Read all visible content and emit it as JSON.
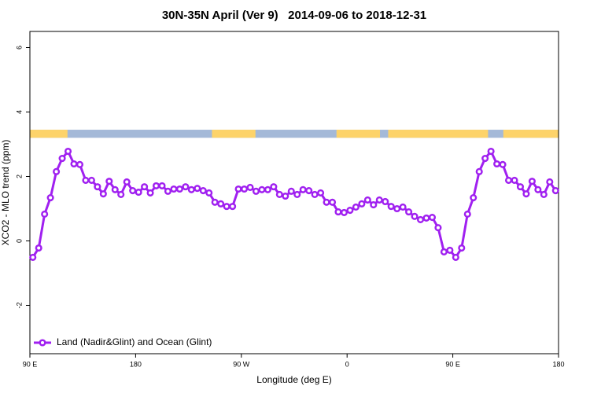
{
  "chart_data": {
    "type": "line",
    "title": "30N-35N April (Ver 9)   2014-09-06 to 2018-12-31",
    "xlabel": "Longitude (deg E)",
    "ylabel": "XCO2 - MLO trend (ppm)",
    "xlim": [
      90,
      540
    ],
    "xticks": [
      {
        "value": 90,
        "label": "90 E"
      },
      180,
      {
        "value": 270,
        "label": "90 W"
      },
      {
        "value": 360,
        "label": "0"
      },
      {
        "value": 450,
        "label": "90 E"
      },
      {
        "value": 540,
        "label": "180"
      }
    ],
    "ylim": [
      -3.5,
      6.5
    ],
    "yticks": [
      -2,
      0,
      2,
      4,
      6
    ],
    "legend": "bottom-left",
    "surface_band": {
      "y": [
        3.2,
        3.45
      ],
      "land_color": "#fdd36a",
      "ocean_color": "#a4b9d8",
      "land_ranges": [
        [
          90,
          122
        ],
        [
          245,
          282
        ],
        [
          351,
          388
        ],
        [
          395,
          480
        ],
        [
          493,
          540
        ]
      ]
    },
    "x": [
      92.5,
      97.5,
      102.5,
      107.5,
      112.5,
      117.5,
      122.5,
      127.5,
      132.5,
      137.5,
      142.5,
      147.5,
      152.5,
      157.5,
      162.5,
      167.5,
      172.5,
      177.5,
      182.5,
      187.5,
      192.5,
      197.5,
      202.5,
      207.5,
      212.5,
      217.5,
      222.5,
      227.5,
      232.5,
      237.5,
      242.5,
      247.5,
      252.5,
      257.5,
      262.5,
      267.5,
      272.5,
      277.5,
      282.5,
      287.5,
      292.5,
      297.5,
      302.5,
      307.5,
      312.5,
      317.5,
      322.5,
      327.5,
      332.5,
      337.5,
      342.5,
      347.5,
      352.5,
      357.5,
      362.5,
      367.5,
      372.5,
      377.5,
      382.5,
      387.5,
      392.5,
      397.5,
      402.5,
      407.5,
      412.5,
      417.5,
      422.5,
      427.5,
      432.5,
      437.5,
      442.5,
      447.5,
      452.5,
      457.5,
      462.5,
      467.5,
      472.5,
      477.5,
      482.5,
      487.5,
      492.5,
      497.5,
      502.5,
      507.5,
      512.5,
      517.5,
      522.5,
      527.5,
      532.5,
      537.5
    ],
    "series": [
      {
        "name": "Land (Nadir&Glint) and Ocean (Glint)",
        "color": "#a020f0",
        "values": [
          -0.51,
          -0.22,
          0.83,
          1.34,
          2.15,
          2.56,
          2.78,
          2.39,
          2.37,
          1.88,
          1.88,
          1.68,
          1.46,
          1.85,
          1.59,
          1.44,
          1.83,
          1.56,
          1.51,
          1.68,
          1.49,
          1.71,
          1.71,
          1.54,
          1.61,
          1.61,
          1.68,
          1.59,
          1.63,
          1.56,
          1.49,
          1.2,
          1.15,
          1.07,
          1.07,
          1.61,
          1.61,
          1.66,
          1.54,
          1.59,
          1.59,
          1.68,
          1.44,
          1.39,
          1.54,
          1.44,
          1.59,
          1.56,
          1.44,
          1.49,
          1.2,
          1.2,
          0.9,
          0.88,
          0.95,
          1.05,
          1.15,
          1.27,
          1.12,
          1.27,
          1.22,
          1.07,
          1.0,
          1.05,
          0.9,
          0.76,
          0.66,
          0.71,
          0.73,
          0.41,
          -0.34,
          -0.29,
          -0.51,
          -0.22,
          0.83,
          1.34,
          2.15,
          2.56,
          2.78,
          2.39,
          2.37,
          1.88,
          1.88,
          1.68,
          1.46,
          1.85,
          1.59,
          1.44,
          1.83,
          1.56
        ]
      }
    ]
  }
}
